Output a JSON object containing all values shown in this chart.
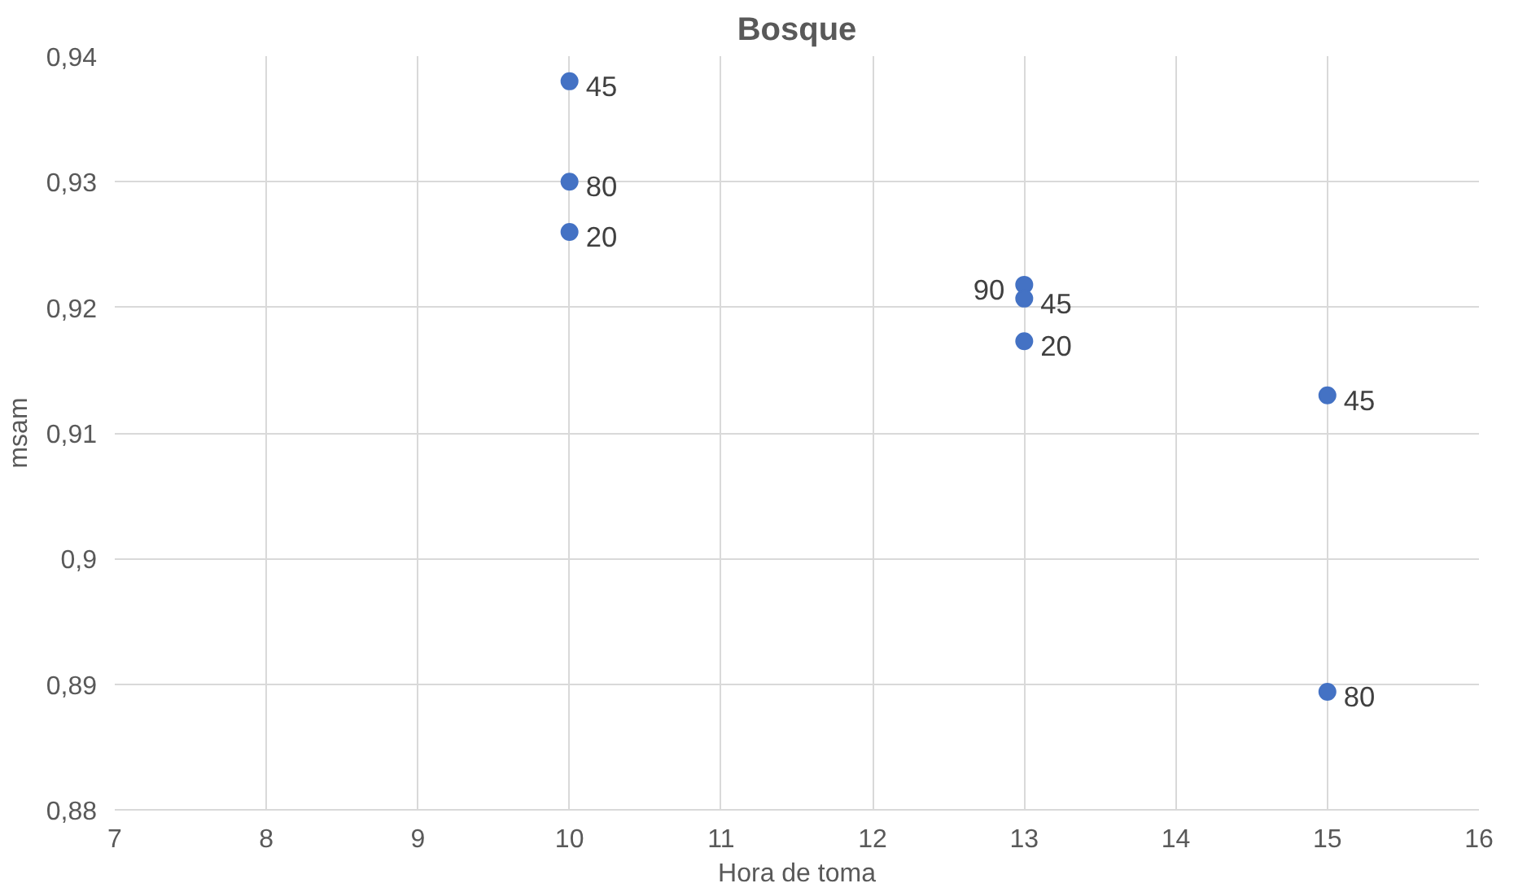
{
  "chart_data": {
    "type": "scatter",
    "title": "Bosque",
    "xlabel": "Hora de toma",
    "ylabel": "msam",
    "x": [
      10,
      10,
      10,
      13,
      13,
      13,
      15,
      15
    ],
    "values": [
      0.938,
      0.93,
      0.926,
      0.9218,
      0.9207,
      0.9173,
      0.913,
      0.8894
    ],
    "annotations": [
      {
        "text": "45",
        "x": 10,
        "y": 0.938
      },
      {
        "text": "80",
        "x": 10,
        "y": 0.93
      },
      {
        "text": "20",
        "x": 10,
        "y": 0.926
      },
      {
        "text": "90",
        "x": 13,
        "y": 0.9218
      },
      {
        "text": "45",
        "x": 13,
        "y": 0.9207
      },
      {
        "text": "20",
        "x": 13,
        "y": 0.9173
      },
      {
        "text": "45",
        "x": 15,
        "y": 0.913
      },
      {
        "text": "80",
        "x": 15,
        "y": 0.8894
      }
    ],
    "color": "#4472c4",
    "marker": "circle",
    "grid": true,
    "xlim": [
      7,
      16
    ],
    "xticks": [
      7,
      8,
      9,
      10,
      11,
      12,
      13,
      14,
      15,
      16
    ],
    "ylim": [
      0.88,
      0.94
    ],
    "yticks": [
      {
        "value": 0.88,
        "label": "0,88"
      },
      {
        "value": 0.89,
        "label": "0,89"
      },
      {
        "value": 0.9,
        "label": "0,9"
      },
      {
        "value": 0.91,
        "label": "0,91"
      },
      {
        "value": 0.92,
        "label": "0,92"
      },
      {
        "value": 0.93,
        "label": "0,93"
      },
      {
        "value": 0.94,
        "label": "0,94"
      }
    ]
  }
}
